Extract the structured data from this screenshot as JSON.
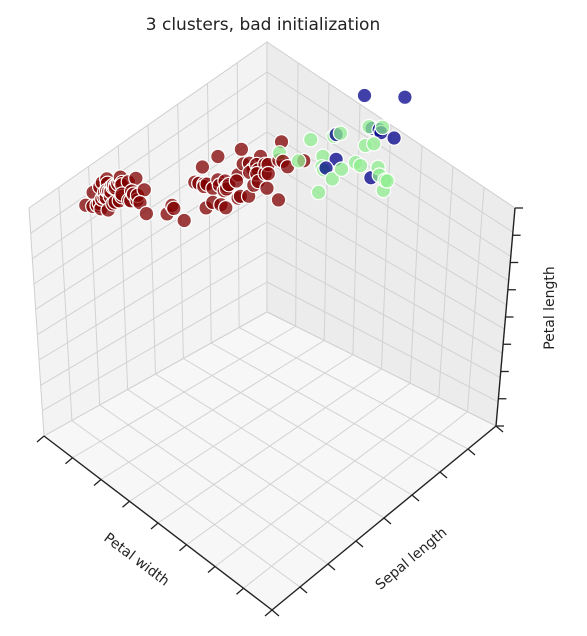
{
  "chart_data": {
    "type": "scatter",
    "projection": "3d",
    "title": "3 clusters, bad initialization",
    "axes": {
      "x": {
        "label": "Petal width"
      },
      "y": {
        "label": "Sepal length"
      },
      "z": {
        "label": "Petal length"
      }
    },
    "tick_labels_visible": false,
    "grid": true,
    "clusters": [
      {
        "color": "#800000",
        "points": [
          [
            0.2,
            0.1,
            0.14
          ],
          [
            0.2,
            0.12,
            0.13
          ],
          [
            0.2,
            0.14,
            0.15
          ],
          [
            0.2,
            0.09,
            0.13
          ],
          [
            0.2,
            0.11,
            0.14
          ],
          [
            0.4,
            0.16,
            0.17
          ],
          [
            0.3,
            0.11,
            0.14
          ],
          [
            0.2,
            0.13,
            0.15
          ],
          [
            0.2,
            0.06,
            0.14
          ],
          [
            0.1,
            0.14,
            0.15
          ],
          [
            0.2,
            0.18,
            0.15
          ],
          [
            0.2,
            0.12,
            0.16
          ],
          [
            0.1,
            0.1,
            0.14
          ],
          [
            0.1,
            0.07,
            0.11
          ],
          [
            0.2,
            0.22,
            0.12
          ],
          [
            0.4,
            0.21,
            0.15
          ],
          [
            0.4,
            0.18,
            0.13
          ],
          [
            0.3,
            0.15,
            0.14
          ],
          [
            0.3,
            0.21,
            0.17
          ],
          [
            0.3,
            0.15,
            0.15
          ],
          [
            0.2,
            0.18,
            0.17
          ],
          [
            0.4,
            0.15,
            0.15
          ],
          [
            0.2,
            0.1,
            0.1
          ],
          [
            0.5,
            0.15,
            0.17
          ],
          [
            0.2,
            0.12,
            0.19
          ],
          [
            0.2,
            0.14,
            0.16
          ],
          [
            0.4,
            0.14,
            0.16
          ],
          [
            0.2,
            0.16,
            0.15
          ],
          [
            0.2,
            0.16,
            0.14
          ],
          [
            0.2,
            0.11,
            0.16
          ],
          [
            0.2,
            0.12,
            0.16
          ],
          [
            0.4,
            0.18,
            0.15
          ],
          [
            0.1,
            0.16,
            0.15
          ],
          [
            0.2,
            0.19,
            0.14
          ],
          [
            0.2,
            0.13,
            0.15
          ],
          [
            0.2,
            0.14,
            0.12
          ],
          [
            0.2,
            0.19,
            0.13
          ],
          [
            0.1,
            0.13,
            0.14
          ],
          [
            0.2,
            0.08,
            0.13
          ],
          [
            0.2,
            0.15,
            0.15
          ],
          [
            0.3,
            0.14,
            0.13
          ],
          [
            0.3,
            0.09,
            0.13
          ],
          [
            0.2,
            0.08,
            0.13
          ],
          [
            0.6,
            0.14,
            0.16
          ],
          [
            0.4,
            0.15,
            0.19
          ],
          [
            0.3,
            0.12,
            0.14
          ],
          [
            0.2,
            0.15,
            0.16
          ],
          [
            0.2,
            0.1,
            0.14
          ],
          [
            0.2,
            0.17,
            0.15
          ],
          [
            0.2,
            0.14,
            0.14
          ],
          [
            1.4,
            0.2,
            0.47
          ],
          [
            1.5,
            0.37,
            0.45
          ],
          [
            1.5,
            0.25,
            0.49
          ],
          [
            1.3,
            0.11,
            0.4
          ],
          [
            1.5,
            0.29,
            0.46
          ],
          [
            1.3,
            0.19,
            0.45
          ],
          [
            1.6,
            0.35,
            0.47
          ],
          [
            1.0,
            0.06,
            0.33
          ],
          [
            1.3,
            0.27,
            0.46
          ],
          [
            1.4,
            0.16,
            0.39
          ],
          [
            1.0,
            0.08,
            0.35
          ],
          [
            1.5,
            0.22,
            0.42
          ],
          [
            1.0,
            0.28,
            0.4
          ],
          [
            1.4,
            0.29,
            0.47
          ],
          [
            1.3,
            0.18,
            0.36
          ],
          [
            1.4,
            0.3,
            0.44
          ],
          [
            1.5,
            0.18,
            0.45
          ],
          [
            1.0,
            0.21,
            0.41
          ],
          [
            1.5,
            0.24,
            0.45
          ],
          [
            1.1,
            0.18,
            0.39
          ],
          [
            1.8,
            0.23,
            0.48
          ],
          [
            1.3,
            0.32,
            0.4
          ],
          [
            1.5,
            0.3,
            0.49
          ],
          [
            1.2,
            0.3,
            0.47
          ],
          [
            1.3,
            0.35,
            0.43
          ],
          [
            1.4,
            0.33,
            0.44
          ],
          [
            1.4,
            0.4,
            0.48
          ],
          [
            1.7,
            0.38,
            0.5
          ],
          [
            1.5,
            0.26,
            0.45
          ],
          [
            1.0,
            0.2,
            0.35
          ],
          [
            1.1,
            0.18,
            0.38
          ],
          [
            1.0,
            0.18,
            0.37
          ],
          [
            1.2,
            0.21,
            0.39
          ],
          [
            1.6,
            0.26,
            0.51
          ],
          [
            1.5,
            0.17,
            0.45
          ],
          [
            1.6,
            0.26,
            0.45
          ],
          [
            1.5,
            0.35,
            0.47
          ],
          [
            1.3,
            0.3,
            0.44
          ],
          [
            1.3,
            0.19,
            0.41
          ],
          [
            1.3,
            0.14,
            0.4
          ],
          [
            1.2,
            0.15,
            0.44
          ],
          [
            1.4,
            0.26,
            0.46
          ],
          [
            1.2,
            0.18,
            0.4
          ],
          [
            1.0,
            0.09,
            0.33
          ],
          [
            1.3,
            0.2,
            0.42
          ],
          [
            1.2,
            0.2,
            0.42
          ],
          [
            1.3,
            0.21,
            0.42
          ],
          [
            1.3,
            0.25,
            0.43
          ],
          [
            1.1,
            0.1,
            0.3
          ],
          [
            1.3,
            0.2,
            0.41
          ]
        ]
      },
      {
        "color": "#00008b",
        "points": [
          [
            2.3,
            0.44,
            0.55
          ],
          [
            1.9,
            0.4,
            0.51
          ],
          [
            2.1,
            0.56,
            0.59
          ],
          [
            1.8,
            0.48,
            0.56
          ],
          [
            2.2,
            0.58,
            0.58
          ],
          [
            2.1,
            0.66,
            0.66
          ],
          [
            1.8,
            0.49,
            0.45
          ],
          [
            1.8,
            0.6,
            0.63
          ],
          [
            2.0,
            0.56,
            0.58
          ],
          [
            2.1,
            0.55,
            0.61
          ]
        ]
      },
      {
        "color": "#90ee90",
        "points": [
          [
            2.5,
            0.43,
            0.6
          ],
          [
            1.9,
            0.39,
            0.51
          ],
          [
            2.1,
            0.49,
            0.59
          ],
          [
            1.8,
            0.47,
            0.56
          ],
          [
            2.2,
            0.43,
            0.58
          ],
          [
            2.1,
            0.5,
            0.66
          ],
          [
            1.7,
            0.47,
            0.45
          ],
          [
            1.8,
            0.36,
            0.63
          ],
          [
            1.8,
            0.31,
            0.58
          ],
          [
            2.5,
            0.42,
            0.61
          ],
          [
            2.0,
            0.43,
            0.51
          ],
          [
            1.9,
            0.38,
            0.53
          ],
          [
            2.1,
            0.45,
            0.55
          ],
          [
            2.0,
            0.39,
            0.5
          ],
          [
            2.4,
            0.46,
            0.51
          ],
          [
            2.3,
            0.48,
            0.53
          ],
          [
            1.8,
            0.5,
            0.55
          ],
          [
            2.2,
            0.52,
            0.67
          ],
          [
            2.3,
            0.44,
            0.69
          ],
          [
            1.5,
            0.35,
            0.5
          ],
          [
            2.3,
            0.47,
            0.57
          ],
          [
            2.0,
            0.33,
            0.49
          ]
        ]
      }
    ]
  }
}
